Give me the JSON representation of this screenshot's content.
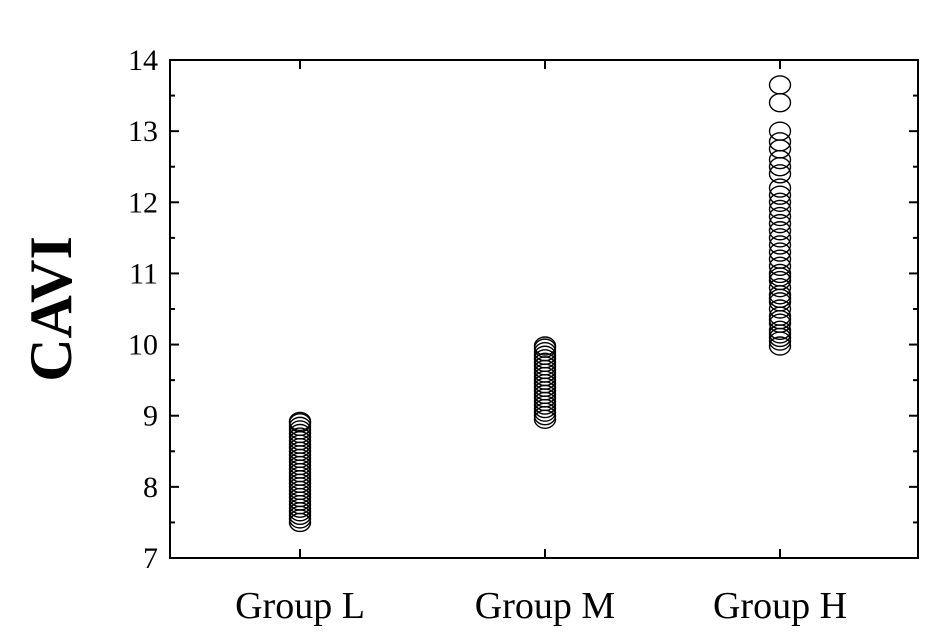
{
  "chart_data": {
    "type": "scatter",
    "title": "",
    "xlabel": "",
    "ylabel": "CAVI",
    "categories": [
      "Group L",
      "Group M",
      "Group H"
    ],
    "ylim": [
      7,
      14
    ],
    "yticks": [
      7,
      8,
      9,
      10,
      11,
      12,
      13,
      14
    ],
    "ytick_labels": [
      "7",
      "8",
      "9",
      "10",
      "11",
      "12",
      "13",
      "14"
    ],
    "grid": false,
    "legend": "none",
    "series": [
      {
        "category": "Group L",
        "values": [
          7.5,
          7.55,
          7.6,
          7.65,
          7.7,
          7.75,
          7.8,
          7.85,
          7.9,
          7.95,
          8.0,
          8.05,
          8.1,
          8.15,
          8.2,
          8.25,
          8.3,
          8.35,
          8.4,
          8.45,
          8.5,
          8.55,
          8.6,
          8.65,
          8.7,
          8.75,
          8.8,
          8.85,
          8.9,
          8.92
        ]
      },
      {
        "category": "Group M",
        "values": [
          8.95,
          9.0,
          9.05,
          9.1,
          9.15,
          9.2,
          9.25,
          9.3,
          9.35,
          9.4,
          9.45,
          9.5,
          9.55,
          9.6,
          9.65,
          9.7,
          9.75,
          9.8,
          9.85,
          9.9,
          9.95,
          9.98
        ]
      },
      {
        "category": "Group H",
        "values": [
          9.98,
          10.05,
          10.1,
          10.15,
          10.2,
          10.3,
          10.35,
          10.4,
          10.5,
          10.6,
          10.65,
          10.7,
          10.8,
          10.9,
          10.95,
          11.0,
          11.1,
          11.2,
          11.3,
          11.4,
          11.5,
          11.6,
          11.7,
          11.8,
          11.9,
          12.0,
          12.1,
          12.2,
          12.4,
          12.5,
          12.6,
          12.75,
          12.85,
          13.0,
          13.4,
          13.65
        ]
      }
    ]
  }
}
